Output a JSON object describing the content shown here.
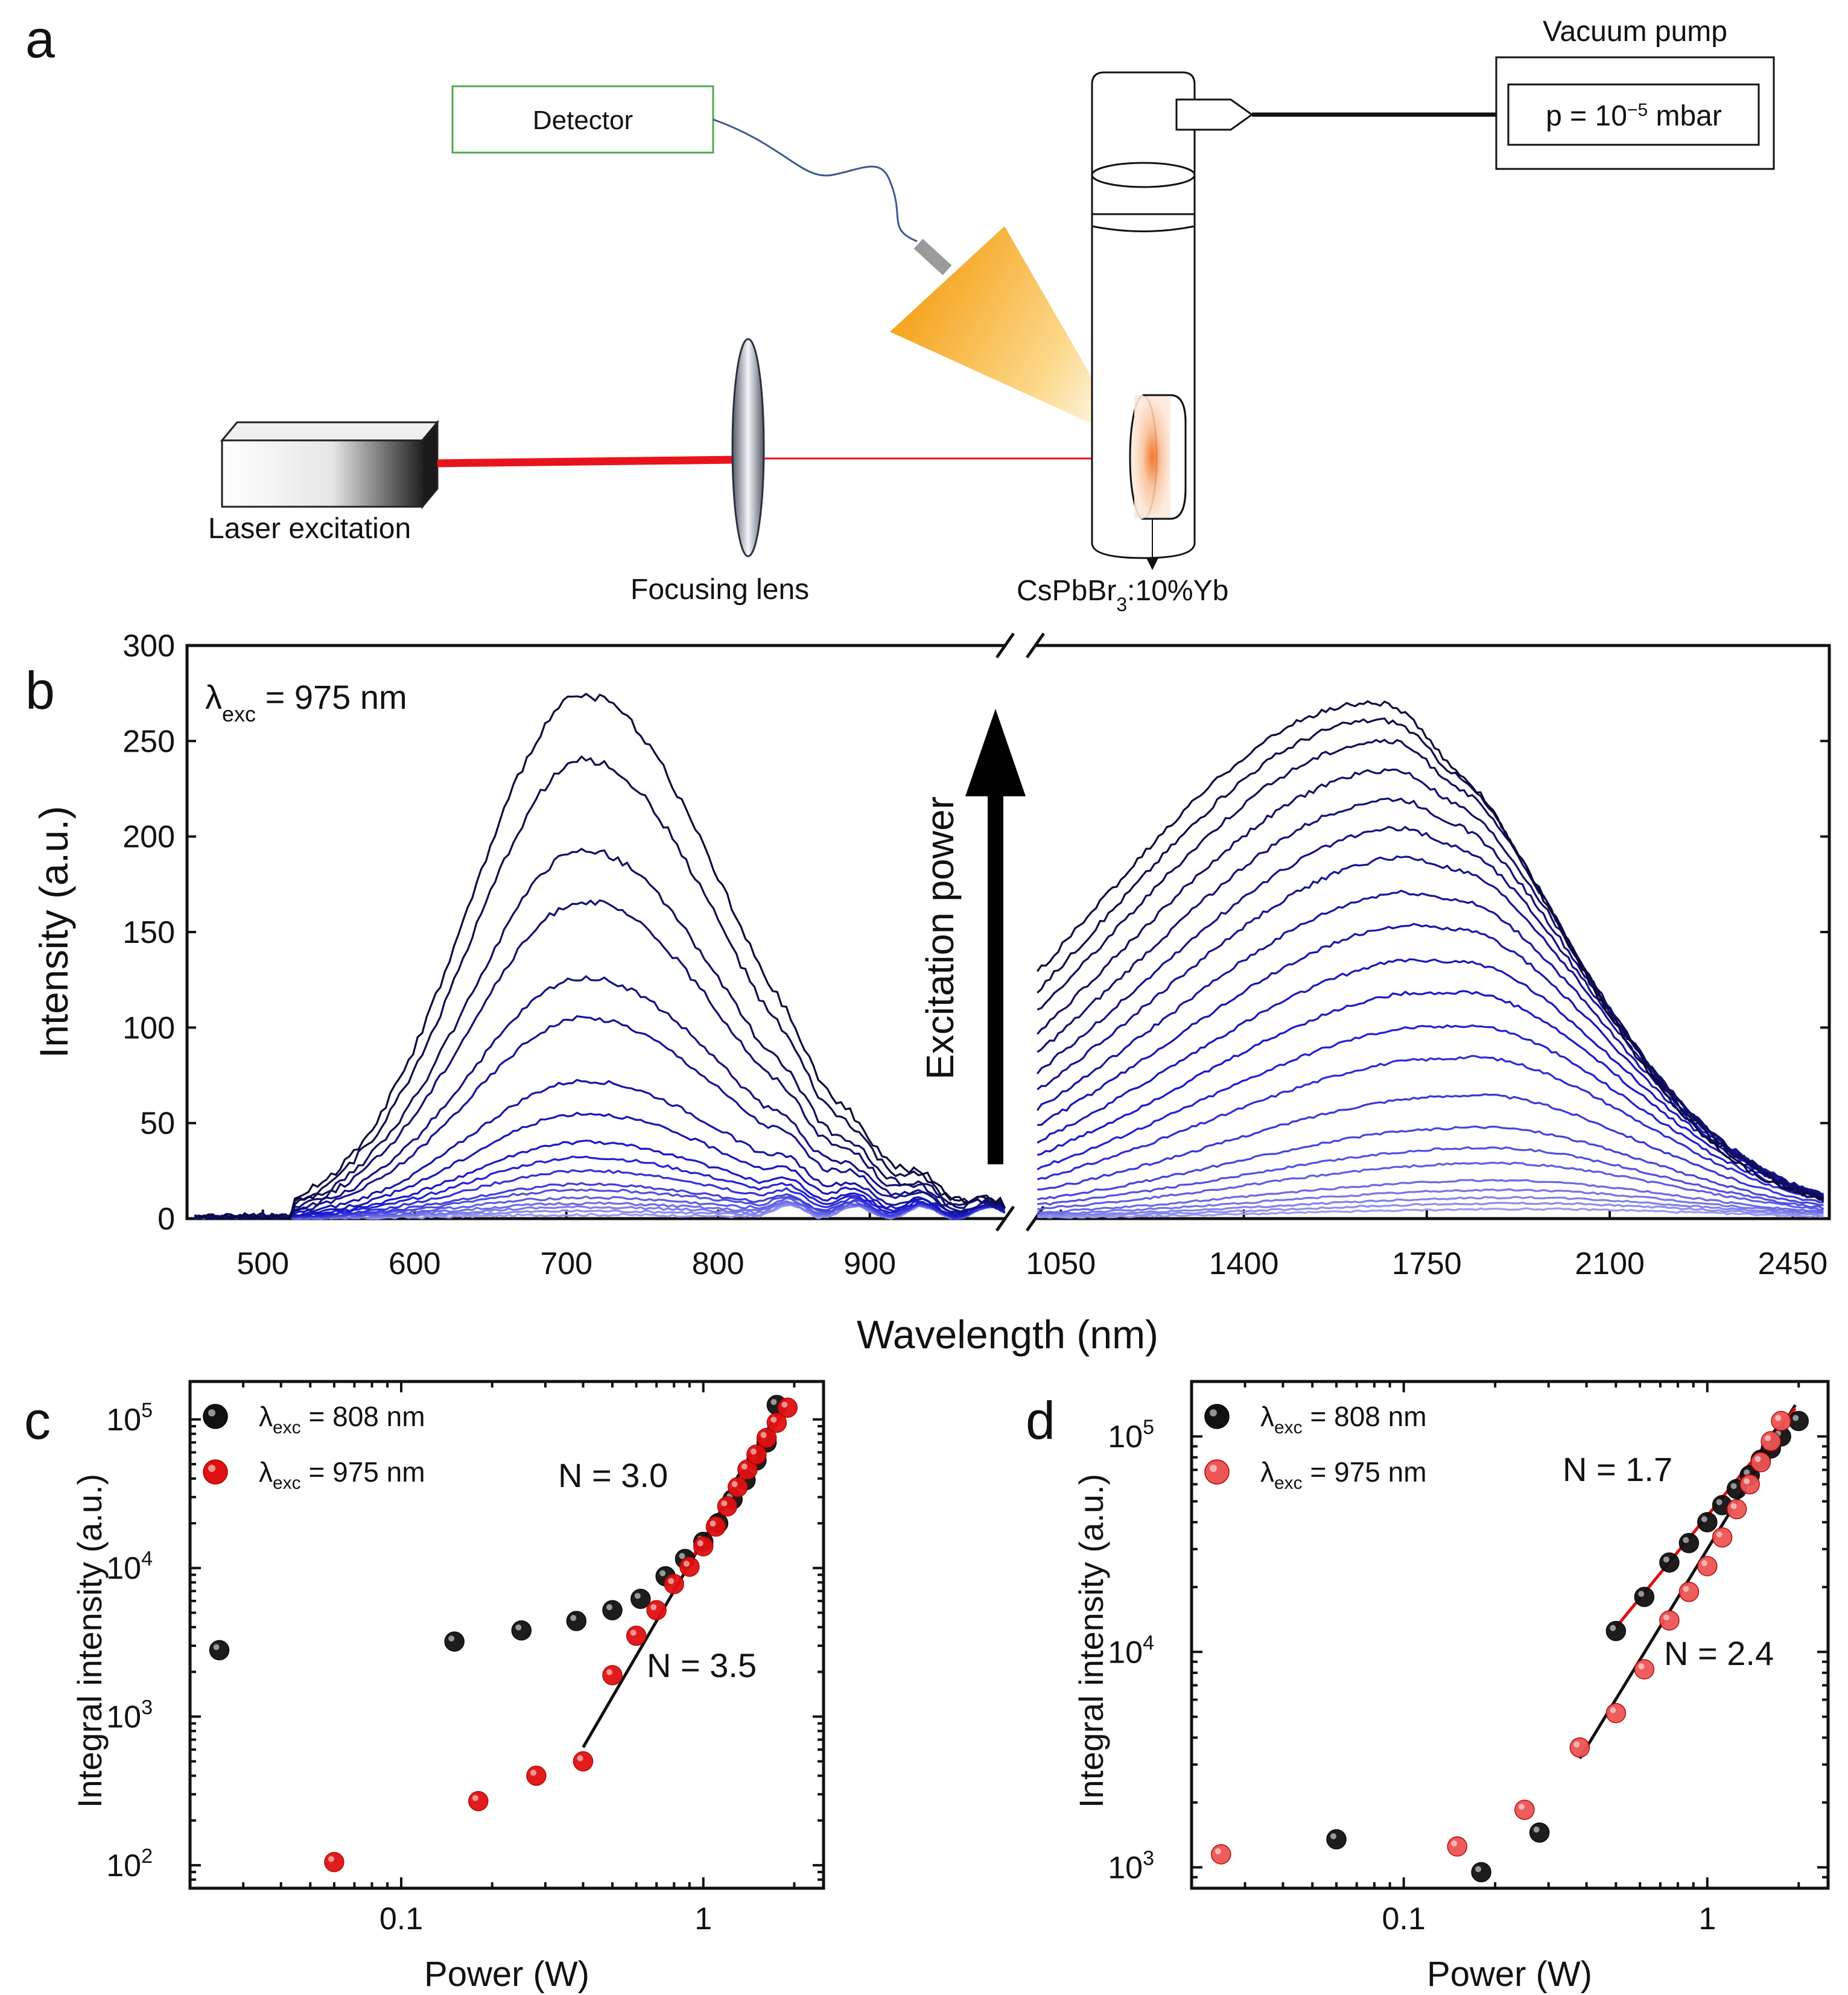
{
  "panel_letters": {
    "a": "a",
    "b": "b",
    "c": "c",
    "d": "d"
  },
  "setup": {
    "detector": "Detector",
    "vacuum_pump": "Vacuum pump",
    "pressure_main": "p = 10",
    "pressure_exp": "−5",
    "pressure_unit": " mbar",
    "laser": "Laser excitation",
    "lens": "Focusing lens",
    "sample_main": "CsPbBr",
    "sample_sub": "3",
    "sample_tail": ":10%Yb",
    "colors": {
      "laser_beam": "#e8141c",
      "detector_box": "#4fa84f",
      "cone_start": "#f5a623",
      "cable": "#3a5a8c"
    }
  },
  "chart_data": [
    {
      "id": "b",
      "type": "line",
      "title": "",
      "xlabel": "Wavelength (nm)",
      "ylabel": "Intensity (a.u.)",
      "annotation_main": "λ",
      "annotation_sub": "exc",
      "annotation_tail": " = 975 nm",
      "arrow_label": "Excitation power",
      "ylim": [
        0,
        300
      ],
      "yticks": [
        "0",
        "50",
        "100",
        "150",
        "200",
        "250",
        "300"
      ],
      "left_segment": {
        "xlim": [
          450,
          990
        ],
        "xticks": [
          "500",
          "600",
          "700",
          "800",
          "900"
        ],
        "tick_values": [
          500,
          600,
          700,
          800,
          900
        ]
      },
      "right_segment": {
        "xlim": [
          1000,
          2520
        ],
        "xticks": [
          "1050",
          "1400",
          "1750",
          "2100",
          "2450"
        ],
        "tick_values": [
          1050,
          1400,
          1750,
          2100,
          2450
        ]
      },
      "series_peaks_visible_band": [
        2,
        4,
        6,
        8,
        11,
        15,
        18,
        25,
        32,
        40,
        55,
        72,
        105,
        126,
        166,
        193,
        240,
        274
      ],
      "series_peaks_nir_band": [
        5,
        8,
        11,
        15,
        20,
        29,
        37,
        48,
        65,
        85,
        102,
        120,
        137,
        155,
        172,
        190,
        205,
        220,
        235,
        250,
        261,
        270
      ],
      "colors": {
        "darkest": "#0b0b3b",
        "mid": "#1a1ad4",
        "lightest": "#9a9af0"
      }
    },
    {
      "id": "c",
      "type": "scatter",
      "xlabel": "Power (W)",
      "ylabel": "Integral intensity (a.u.)",
      "xscale": "log",
      "yscale": "log",
      "xlim": [
        0.02,
        2.5
      ],
      "ylim": [
        70,
        180000
      ],
      "xticks": [
        "0.1",
        "1"
      ],
      "yticks_base": [
        "10",
        "10",
        "10",
        "10"
      ],
      "yticks_exp": [
        "2",
        "3",
        "4",
        "5"
      ],
      "legend": [
        {
          "main": "λ",
          "sub": "exc",
          "tail": " = 808 nm",
          "color": "#111111"
        },
        {
          "main": "λ",
          "sub": "exc",
          "tail": " = 975  nm",
          "color": "#e01010"
        }
      ],
      "annotations": [
        {
          "text": "N = 3.0",
          "color": "#111111"
        },
        {
          "text": "N = 3.5",
          "color": "#e01010"
        }
      ],
      "series": [
        {
          "name": "808 nm",
          "color": "#111111",
          "x": [
            0.025,
            0.15,
            0.25,
            0.38,
            0.5,
            0.62,
            0.75,
            0.87,
            1.0,
            1.12,
            1.25,
            1.38,
            1.5,
            1.62,
            1.75
          ],
          "y": [
            2800,
            3200,
            3800,
            4400,
            5200,
            6200,
            8800,
            11500,
            15000,
            20000,
            29000,
            39000,
            53000,
            70000,
            125000
          ]
        },
        {
          "name": "975 nm",
          "color": "#e01010",
          "x": [
            0.06,
            0.18,
            0.28,
            0.4,
            0.5,
            0.6,
            0.7,
            0.8,
            0.9,
            1.0,
            1.1,
            1.2,
            1.3,
            1.4,
            1.5,
            1.62,
            1.75,
            1.9
          ],
          "y": [
            105,
            270,
            400,
            500,
            1900,
            3500,
            5200,
            7800,
            10200,
            14000,
            19000,
            26000,
            35000,
            46000,
            58000,
            75000,
            95000,
            120000
          ]
        }
      ],
      "fits": [
        {
          "color": "#111111",
          "x": [
            0.4,
            1.8
          ],
          "y": [
            620,
            120000
          ]
        },
        {
          "color": "#e01010",
          "x": [
            0.9,
            1.9
          ],
          "y": [
            11000,
            123000
          ]
        }
      ]
    },
    {
      "id": "d",
      "type": "scatter",
      "xlabel": "Power (W)",
      "ylabel": "Integral intensity (a.u.)",
      "xscale": "log",
      "yscale": "log",
      "xlim": [
        0.02,
        2.5
      ],
      "ylim": [
        800,
        180000
      ],
      "xticks": [
        "0.1",
        "1"
      ],
      "yticks_base": [
        "10",
        "10",
        "10"
      ],
      "yticks_exp": [
        "3",
        "4",
        "5"
      ],
      "legend": [
        {
          "main": "λ",
          "sub": "exc",
          "tail": " = 808 nm",
          "color": "#111111"
        },
        {
          "main": "λ",
          "sub": "exc",
          "tail": " = 975 nm",
          "color": "#ee5555"
        }
      ],
      "annotations": [
        {
          "text": "N = 1.7",
          "color": "#111111"
        },
        {
          "text": "N = 2.4",
          "color": "#e01010"
        }
      ],
      "series": [
        {
          "name": "808 nm",
          "color": "#111111",
          "x": [
            0.06,
            0.18,
            0.28,
            0.5,
            0.62,
            0.75,
            0.87,
            1.0,
            1.12,
            1.25,
            1.38,
            1.5,
            1.62,
            1.75,
            2.0
          ],
          "y": [
            1350,
            950,
            1450,
            12500,
            18000,
            26000,
            32000,
            40000,
            48000,
            57000,
            66000,
            78000,
            88000,
            100000,
            118000
          ]
        },
        {
          "name": "975 nm",
          "color": "#ee5555",
          "x": [
            0.025,
            0.15,
            0.25,
            0.38,
            0.5,
            0.62,
            0.75,
            0.87,
            1.0,
            1.12,
            1.25,
            1.38,
            1.5,
            1.62,
            1.75
          ],
          "y": [
            1150,
            1250,
            1850,
            3600,
            5200,
            8300,
            14000,
            19000,
            25000,
            34000,
            46000,
            60000,
            76000,
            95000,
            118000
          ]
        }
      ],
      "fits": [
        {
          "color": "#111111",
          "x": [
            0.38,
            1.95
          ],
          "y": [
            3200,
            140000
          ]
        },
        {
          "color": "#e01010",
          "x": [
            0.5,
            1.95
          ],
          "y": [
            13000,
            135000
          ]
        }
      ]
    }
  ]
}
